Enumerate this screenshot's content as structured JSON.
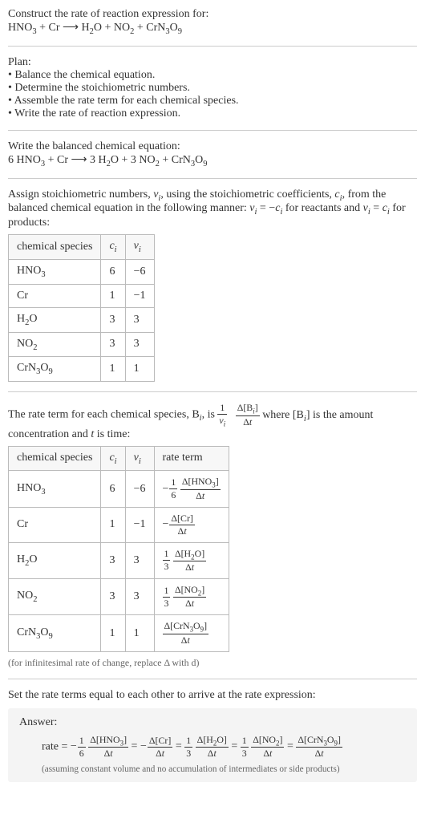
{
  "intro": {
    "line1": "Construct the rate of reaction expression for:",
    "equation_html": "HNO<sub>3</sub> + Cr ⟶ H<sub>2</sub>O + NO<sub>2</sub> + CrN<sub>3</sub>O<sub>9</sub>"
  },
  "plan": {
    "heading": "Plan:",
    "items": [
      "Balance the chemical equation.",
      "Determine the stoichiometric numbers.",
      "Assemble the rate term for each chemical species.",
      "Write the rate of reaction expression."
    ]
  },
  "balanced": {
    "heading": "Write the balanced chemical equation:",
    "equation_html": "6 HNO<sub>3</sub> + Cr ⟶ 3 H<sub>2</sub>O + 3 NO<sub>2</sub> + CrN<sub>3</sub>O<sub>9</sub>"
  },
  "assign": {
    "text_html": "Assign stoichiometric numbers, <span class=\"italic\">ν<sub>i</sub></span>, using the stoichiometric coefficients, <span class=\"italic\">c<sub>i</sub></span>, from the balanced chemical equation in the following manner: <span class=\"italic\">ν<sub>i</sub></span> = −<span class=\"italic\">c<sub>i</sub></span> for reactants and <span class=\"italic\">ν<sub>i</sub></span> = <span class=\"italic\">c<sub>i</sub></span> for products:",
    "table": {
      "headers": [
        "chemical species",
        "c<sub>i</sub>",
        "ν<sub>i</sub>"
      ],
      "rows": [
        [
          "HNO<sub>3</sub>",
          "6",
          "−6"
        ],
        [
          "Cr",
          "1",
          "−1"
        ],
        [
          "H<sub>2</sub>O",
          "3",
          "3"
        ],
        [
          "NO<sub>2</sub>",
          "3",
          "3"
        ],
        [
          "CrN<sub>3</sub>O<sub>9</sub>",
          "1",
          "1"
        ]
      ],
      "col_align": [
        "left",
        "center",
        "center"
      ],
      "border_color": "#bbb"
    }
  },
  "rateterm": {
    "text_before": "The rate term for each chemical species, B",
    "text_after": ", is ",
    "frac1_num": "1",
    "frac1_den_html": "<span class=\"italic\">ν<sub>i</sub></span>",
    "frac2_num_html": "Δ[B<sub><span class=\"italic\">i</span></sub>]",
    "frac2_den_html": "Δ<span class=\"italic\">t</span>",
    "text_tail_html": " where [B<sub><span class=\"italic\">i</span></sub>] is the amount concentration and <span class=\"italic\">t</span> is time:",
    "table": {
      "headers": [
        "chemical species",
        "c<sub>i</sub>",
        "ν<sub>i</sub>",
        "rate term"
      ],
      "rows": [
        {
          "species": "HNO<sub>3</sub>",
          "c": "6",
          "nu": "−6",
          "rate_prefix": "−",
          "rate_coef_num": "1",
          "rate_coef_den": "6",
          "rate_num": "Δ[HNO<sub>3</sub>]",
          "rate_den": "Δ<span class=\"italic\">t</span>"
        },
        {
          "species": "Cr",
          "c": "1",
          "nu": "−1",
          "rate_prefix": "−",
          "rate_coef_num": "",
          "rate_coef_den": "",
          "rate_num": "Δ[Cr]",
          "rate_den": "Δ<span class=\"italic\">t</span>"
        },
        {
          "species": "H<sub>2</sub>O",
          "c": "3",
          "nu": "3",
          "rate_prefix": "",
          "rate_coef_num": "1",
          "rate_coef_den": "3",
          "rate_num": "Δ[H<sub>2</sub>O]",
          "rate_den": "Δ<span class=\"italic\">t</span>"
        },
        {
          "species": "NO<sub>2</sub>",
          "c": "3",
          "nu": "3",
          "rate_prefix": "",
          "rate_coef_num": "1",
          "rate_coef_den": "3",
          "rate_num": "Δ[NO<sub>2</sub>]",
          "rate_den": "Δ<span class=\"italic\">t</span>"
        },
        {
          "species": "CrN<sub>3</sub>O<sub>9</sub>",
          "c": "1",
          "nu": "1",
          "rate_prefix": "",
          "rate_coef_num": "",
          "rate_coef_den": "",
          "rate_num": "Δ[CrN<sub>3</sub>O<sub>9</sub>]",
          "rate_den": "Δ<span class=\"italic\">t</span>"
        }
      ]
    },
    "footnote": "(for infinitesimal rate of change, replace Δ with d)"
  },
  "final": {
    "heading": "Set the rate terms equal to each other to arrive at the rate expression:"
  },
  "answer": {
    "label": "Answer:",
    "rate_label": "rate = ",
    "terms": [
      {
        "prefix": "−",
        "coef_num": "1",
        "coef_den": "6",
        "num": "Δ[HNO<sub>3</sub>]",
        "den": "Δ<span class=\"italic\">t</span>"
      },
      {
        "prefix": "−",
        "coef_num": "",
        "coef_den": "",
        "num": "Δ[Cr]",
        "den": "Δ<span class=\"italic\">t</span>"
      },
      {
        "prefix": "",
        "coef_num": "1",
        "coef_den": "3",
        "num": "Δ[H<sub>2</sub>O]",
        "den": "Δ<span class=\"italic\">t</span>"
      },
      {
        "prefix": "",
        "coef_num": "1",
        "coef_den": "3",
        "num": "Δ[NO<sub>2</sub>]",
        "den": "Δ<span class=\"italic\">t</span>"
      },
      {
        "prefix": "",
        "coef_num": "",
        "coef_den": "",
        "num": "Δ[CrN<sub>3</sub>O<sub>9</sub>]",
        "den": "Δ<span class=\"italic\">t</span>"
      }
    ],
    "note": "(assuming constant volume and no accumulation of intermediates or side products)",
    "bg_color": "#f4f4f4"
  },
  "colors": {
    "text": "#333333",
    "rule": "#cccccc",
    "table_border": "#bbbbbb",
    "answer_bg": "#f4f4f4",
    "footnote": "#666666"
  }
}
